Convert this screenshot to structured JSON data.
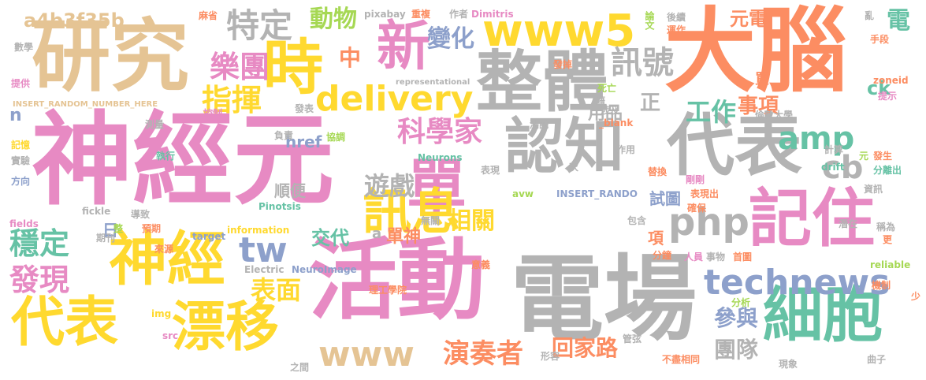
{
  "colors": {
    "pink": "#e78ac3",
    "gray": "#b3b3b3",
    "orange": "#fc8d62",
    "yellow": "#ffd92f",
    "tan": "#e5c494",
    "green": "#66c2a5",
    "blue": "#8da0cb",
    "lime": "#a6d854"
  },
  "words": [
    {
      "text": "神經元",
      "color": "pink"
    },
    {
      "text": "電場",
      "color": "gray"
    },
    {
      "text": "活動",
      "color": "pink"
    },
    {
      "text": "大腦",
      "color": "orange"
    },
    {
      "text": "研究",
      "color": "tan"
    },
    {
      "text": "整體",
      "color": "gray"
    },
    {
      "text": "代表",
      "color": "gray"
    },
    {
      "text": "認知",
      "color": "gray"
    },
    {
      "text": "記住",
      "color": "pink"
    },
    {
      "text": "細胞",
      "color": "green"
    },
    {
      "text": "神經",
      "color": "yellow"
    },
    {
      "text": "代表",
      "color": "yellow"
    },
    {
      "text": "漂移",
      "color": "yellow"
    },
    {
      "text": "單",
      "color": "pink"
    },
    {
      "text": "時",
      "color": "yellow"
    },
    {
      "text": "www5",
      "color": "yellow"
    },
    {
      "text": "訊息",
      "color": "yellow"
    },
    {
      "text": "新",
      "color": "pink"
    },
    {
      "text": "php",
      "color": "gray"
    },
    {
      "text": "technews",
      "color": "blue"
    },
    {
      "text": "delivery",
      "color": "yellow"
    },
    {
      "text": "amp",
      "color": "green"
    },
    {
      "text": "cb",
      "color": "gray"
    },
    {
      "text": "tw",
      "color": "blue"
    },
    {
      "text": "www",
      "color": "tan"
    },
    {
      "text": "特定",
      "color": "gray"
    },
    {
      "text": "a4b3f35b",
      "color": "tan"
    },
    {
      "text": "樂團",
      "color": "pink"
    },
    {
      "text": "指揮",
      "color": "yellow"
    },
    {
      "text": "科學家",
      "color": "pink"
    },
    {
      "text": "變化",
      "color": "blue"
    },
    {
      "text": "訊號",
      "color": "gray"
    },
    {
      "text": "動物",
      "color": "lime"
    },
    {
      "text": "中",
      "color": "orange"
    },
    {
      "text": "穩定",
      "color": "green"
    },
    {
      "text": "發現",
      "color": "pink"
    },
    {
      "text": "遊戲",
      "color": "gray"
    },
    {
      "text": "相關",
      "color": "yellow"
    },
    {
      "text": "工作",
      "color": "green"
    },
    {
      "text": "表面",
      "color": "yellow"
    },
    {
      "text": "演奏者",
      "color": "orange"
    },
    {
      "text": "回家路",
      "color": "orange"
    },
    {
      "text": "參與",
      "color": "blue"
    },
    {
      "text": "團隊",
      "color": "gray"
    },
    {
      "text": "電",
      "color": "green"
    },
    {
      "text": "元電",
      "color": "orange"
    },
    {
      "text": "ck",
      "color": "green"
    },
    {
      "text": "事項",
      "color": "orange"
    },
    {
      "text": "用品",
      "color": "gray"
    },
    {
      "text": "正",
      "color": "gray"
    },
    {
      "text": "href",
      "color": "blue"
    },
    {
      "text": "順便",
      "color": "gray"
    },
    {
      "text": "試圖",
      "color": "blue"
    },
    {
      "text": "單神",
      "color": "orange"
    },
    {
      "text": "交代",
      "color": "green"
    },
    {
      "text": "a",
      "color": "gray"
    },
    {
      "text": "日",
      "color": "blue"
    },
    {
      "text": "項",
      "color": "orange"
    },
    {
      "text": "買",
      "color": "orange"
    },
    {
      "text": "n",
      "color": "blue"
    },
    {
      "text": "pixabay",
      "color": "gray"
    },
    {
      "text": "重複",
      "color": "orange"
    },
    {
      "text": "作者",
      "color": "gray"
    },
    {
      "text": "Dimitris",
      "color": "pink"
    },
    {
      "text": "論文",
      "color": "lime"
    },
    {
      "text": "後續",
      "color": "gray"
    },
    {
      "text": "運作",
      "color": "orange"
    },
    {
      "text": "亂",
      "color": "gray"
    },
    {
      "text": "手段",
      "color": "orange"
    },
    {
      "text": "麻省",
      "color": "orange"
    },
    {
      "text": "數學",
      "color": "gray"
    },
    {
      "text": "提供",
      "color": "pink"
    },
    {
      "text": "INSERT_RANDOM_NUMBER_HERE",
      "color": "tan"
    },
    {
      "text": "representational",
      "color": "gray"
    },
    {
      "text": "發掉",
      "color": "orange"
    },
    {
      "text": "藉",
      "color": "gray"
    },
    {
      "text": "控制",
      "color": "pink"
    },
    {
      "text": "發表",
      "color": "gray"
    },
    {
      "text": "死亡",
      "color": "lime"
    },
    {
      "text": "zoneid",
      "color": "orange"
    },
    {
      "text": "提示",
      "color": "pink"
    },
    {
      "text": "涉及",
      "color": "gray"
    },
    {
      "text": "_blank",
      "color": "orange"
    },
    {
      "text": "測量",
      "color": "gray"
    },
    {
      "text": "負責",
      "color": "gray"
    },
    {
      "text": "協調",
      "color": "lime"
    },
    {
      "text": "測試",
      "color": "gray"
    },
    {
      "text": "倫敦大學",
      "color": "gray"
    },
    {
      "text": "記憶",
      "color": "yellow"
    },
    {
      "text": "實驗",
      "color": "gray"
    },
    {
      "text": "執行",
      "color": "green"
    },
    {
      "text": "方向",
      "color": "blue"
    },
    {
      "text": "Neurons",
      "color": "green"
    },
    {
      "text": "作用",
      "color": "gray"
    },
    {
      "text": "計算",
      "color": "gray"
    },
    {
      "text": "發生",
      "color": "orange"
    },
    {
      "text": "元",
      "color": "lime"
    },
    {
      "text": "分離出",
      "color": "green"
    },
    {
      "text": "drift",
      "color": "green"
    },
    {
      "text": "次",
      "color": "gray"
    },
    {
      "text": "表現",
      "color": "gray"
    },
    {
      "text": "替換",
      "color": "orange"
    },
    {
      "text": "剛剛",
      "color": "pink"
    },
    {
      "text": "表現出",
      "color": "orange"
    },
    {
      "text": "資訊",
      "color": "gray"
    },
    {
      "text": "avw",
      "color": "lime"
    },
    {
      "text": "INSERT_RANDO",
      "color": "blue"
    },
    {
      "text": "fields",
      "color": "pink"
    },
    {
      "text": "fickle",
      "color": "gray"
    },
    {
      "text": "導致",
      "color": "gray"
    },
    {
      "text": "Pinotsis",
      "color": "green"
    },
    {
      "text": "無關",
      "color": "gray"
    },
    {
      "text": "包含",
      "color": "gray"
    },
    {
      "text": "確保",
      "color": "orange"
    },
    {
      "text": "稱為",
      "color": "gray"
    },
    {
      "text": "預期",
      "color": "orange"
    },
    {
      "text": "整",
      "color": "lime"
    },
    {
      "text": "information",
      "color": "yellow"
    },
    {
      "text": "潛在",
      "color": "gray"
    },
    {
      "text": "更",
      "color": "orange"
    },
    {
      "text": "期刊",
      "color": "gray"
    },
    {
      "text": "target",
      "color": "blue"
    },
    {
      "text": "來源",
      "color": "orange"
    },
    {
      "text": "分鐘",
      "color": "orange"
    },
    {
      "text": "人員",
      "color": "pink"
    },
    {
      "text": "事物",
      "color": "gray"
    },
    {
      "text": "首圖",
      "color": "orange"
    },
    {
      "text": "Electric",
      "color": "gray"
    },
    {
      "text": "NeuroImage",
      "color": "blue"
    },
    {
      "text": "意義",
      "color": "orange"
    },
    {
      "text": "reliable",
      "color": "lime"
    },
    {
      "text": "理工學院",
      "color": "orange"
    },
    {
      "text": "分析",
      "color": "lime"
    },
    {
      "text": "機制",
      "color": "orange"
    },
    {
      "text": "少",
      "color": "orange"
    },
    {
      "text": "img",
      "color": "yellow"
    },
    {
      "text": "src",
      "color": "pink"
    },
    {
      "text": "之間",
      "color": "gray"
    },
    {
      "text": "形容",
      "color": "gray"
    },
    {
      "text": "管弦",
      "color": "gray"
    },
    {
      "text": "不盡相同",
      "color": "orange"
    },
    {
      "text": "現象",
      "color": "gray"
    },
    {
      "text": "曲子",
      "color": "gray"
    }
  ]
}
